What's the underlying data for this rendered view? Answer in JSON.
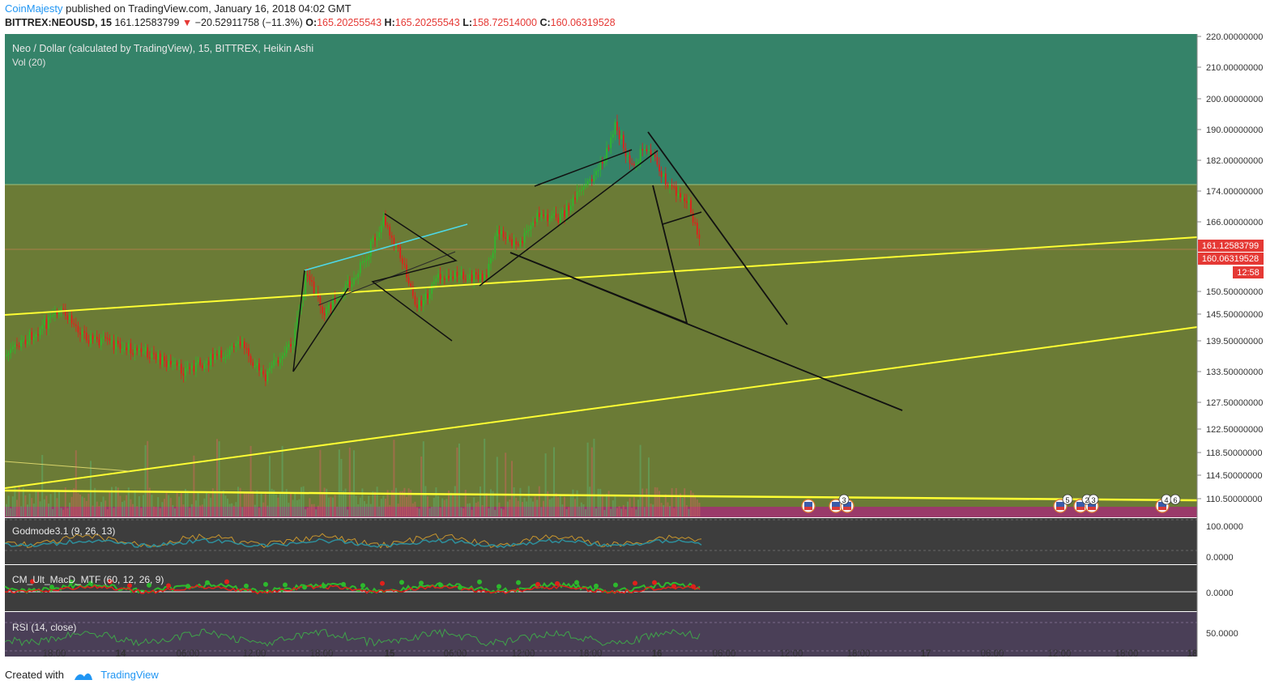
{
  "header": {
    "author": "CoinMajesty",
    "published": "published on TradingView.com, January 16, 2018 04:02 GMT",
    "symbol": "BITTREX:NEOUSD, 15",
    "last": "161.12583799",
    "change": "−20.52911758 (−11.3%)",
    "o_label": "O:",
    "o": "165.20255543",
    "h_label": "H:",
    "h": "165.20255543",
    "l_label": "L:",
    "l": "158.72514000",
    "c_label": "C:",
    "c": "160.06319528"
  },
  "chart": {
    "title": "Neo / Dollar (calculated by TradingView), 15, BITTREX, Heikin Ashi",
    "vol_label": "Vol (20)"
  },
  "panes": {
    "godmode": "Godmode3.1 (9, 26, 13)",
    "macd": "CM_Ult_MacD_MTF (60, 12, 26, 9)",
    "rsi": "RSI (14, close)"
  },
  "price_badges": {
    "last": "161.12583799",
    "close": "160.06319528",
    "timer": "12:58"
  },
  "event_markers": [
    "3",
    "5",
    "2",
    "3",
    "4",
    "6"
  ],
  "footer": {
    "created": "Created with",
    "brand": "TradingView"
  },
  "colors": {
    "zone_top": "#358369",
    "zone_main": "#6b7b36",
    "bull": "#2db82d",
    "bear": "#e0201b",
    "trend_yellow": "#ffff33",
    "cyan": "#4dd9e8",
    "axis_bg": "#ffffff",
    "volume_band": "#9a3a6a",
    "indicator_bg": "#3d3d3d",
    "rsi_bg": "#4a3f57"
  },
  "chart_data": {
    "type": "candlestick",
    "style": "Heikin Ashi",
    "interval": "15",
    "price_axis": {
      "ticks": [
        "220.00000000",
        "210.00000000",
        "200.00000000",
        "190.00000000",
        "182.00000000",
        "174.00000000",
        "166.00000000",
        "150.50000000",
        "145.50000000",
        "139.50000000",
        "133.50000000",
        "127.50000000",
        "122.50000000",
        "118.50000000",
        "114.50000000",
        "110.50000000"
      ],
      "scale": "log"
    },
    "time_axis": {
      "ticks": [
        "18:00",
        "14",
        "06:00",
        "12:00",
        "18:00",
        "15",
        "06:00",
        "12:00",
        "18:00",
        "16",
        "06:00",
        "12:00",
        "18:00",
        "17",
        "06:00",
        "12:00",
        "18:00",
        "18"
      ]
    },
    "indicator_axes": {
      "godmode": [
        "100.0000",
        "0.0000"
      ],
      "macd": [
        "0.0000"
      ],
      "rsi": [
        "50.0000"
      ]
    },
    "zones": [
      {
        "name": "upper",
        "from": 176,
        "to": 224
      },
      {
        "name": "main",
        "from": 107,
        "to": 176
      }
    ]
  }
}
